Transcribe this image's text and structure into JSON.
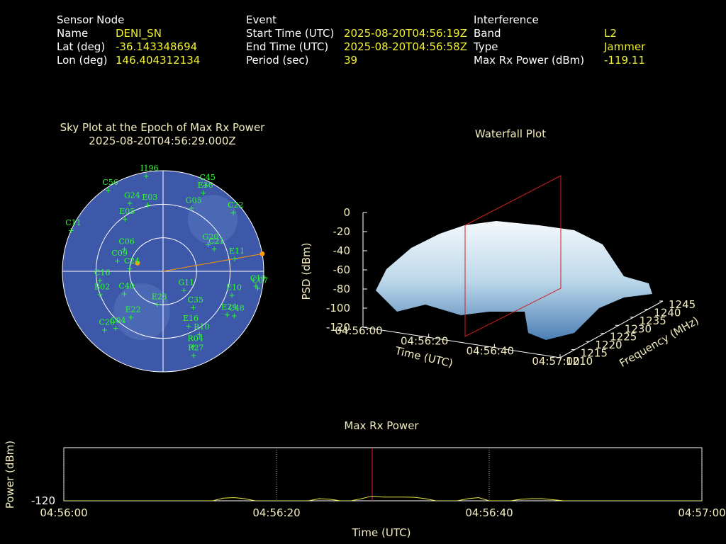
{
  "header": {
    "columns": [
      {
        "title": "Sensor Node",
        "rows": [
          [
            "Name",
            "DENI_SN"
          ],
          [
            "Lat (deg)",
            "-36.143348694"
          ],
          [
            "Lon (deg)",
            "146.404312134"
          ]
        ]
      },
      {
        "title": "Event",
        "rows": [
          [
            "Start Time (UTC)",
            "2025-08-20T04:56:19Z"
          ],
          [
            "End Time (UTC)",
            "2025-08-20T04:56:58Z"
          ],
          [
            "Period (sec)",
            "39"
          ]
        ]
      },
      {
        "title": "Interference",
        "rows": [
          [
            "Band",
            "L2"
          ],
          [
            "Type",
            "Jammer"
          ],
          [
            "Max Rx Power (dBm)",
            "-119.11"
          ]
        ]
      }
    ]
  },
  "chart_data": [
    {
      "type": "polar",
      "title": "Sky Plot at the Epoch of Max Rx Power",
      "subtitle": "2025-08-20T04:56:29.000Z",
      "rings": [
        30,
        60
      ],
      "satellites": {
        "names": [
          "C56",
          "I196",
          "C45",
          "E36",
          "G24",
          "E03",
          "G05",
          "C22",
          "E05",
          "C11",
          "G20",
          "C21",
          "E11",
          "C09",
          "C06",
          "C24",
          "C19",
          "C07",
          "E10",
          "G11",
          "C35",
          "E23",
          "E24",
          "C48",
          "E16",
          "R10",
          "R04",
          "R27",
          "C40",
          "E22",
          "C20",
          "C04",
          "B02",
          "C16"
        ],
        "azimuth": [
          326,
          350,
          26,
          27,
          334,
          347,
          24,
          50,
          324,
          294,
          59,
          66,
          80,
          283,
          300,
          275,
          99,
          100,
          109,
          132,
          140,
          190,
          124,
          122,
          155,
          150,
          158,
          160,
          240,
          215,
          225,
          220,
          250,
          262
        ],
        "elevation": [
          2,
          3,
          4,
          11,
          22,
          29,
          28,
          8,
          32,
          0,
          43,
          40,
          25,
          48,
          50,
          60,
          6,
          4,
          25,
          65,
          48,
          60,
          21,
          15,
          36,
          25,
          18,
          10,
          50,
          40,
          16,
          24,
          30,
          33
        ]
      },
      "interference": {
        "azimuth": 80,
        "elevation": 0,
        "color": "#ff9a00"
      },
      "sensor": {
        "azimuth": 288,
        "elevation": 66,
        "color": "#ff9a00"
      }
    },
    {
      "type": "surface",
      "title": "Waterfall Plot",
      "zlabel": "PSD (dBm)",
      "xlabel": "Time (UTC)",
      "ylabel": "Frequency (MHz)",
      "zlim": [
        -120,
        0
      ],
      "zticks": [
        0,
        -20,
        -40,
        -60,
        -80,
        -100,
        -120
      ],
      "xlim": [
        0,
        60
      ],
      "xticks": [
        {
          "value": 0,
          "label": "04:56:00"
        },
        {
          "value": 20,
          "label": "04:56:20"
        },
        {
          "value": 40,
          "label": "04:56:40"
        },
        {
          "value": 60,
          "label": "04:57:00"
        }
      ],
      "ylim": [
        1210,
        1245
      ],
      "yticks": [
        1210,
        1215,
        1220,
        1225,
        1230,
        1235,
        1240,
        1245
      ]
    },
    {
      "type": "line",
      "title": "Max Rx Power",
      "xlabel": "Time (UTC)",
      "ylabel": "Power (dBm)",
      "xlim": [
        0,
        60
      ],
      "xticks": [
        {
          "value": 0,
          "label": "04:56:00"
        },
        {
          "value": 20,
          "label": "04:56:20"
        },
        {
          "value": 40,
          "label": "04:56:40"
        },
        {
          "value": 60,
          "label": "04:57:00"
        }
      ],
      "ylim": [
        -120,
        -110
      ],
      "yticks": [
        -120
      ],
      "grid": true,
      "marker_x": 29,
      "marker_color": "#e02020",
      "x": [
        0,
        1,
        2,
        3,
        4,
        5,
        6,
        7,
        8,
        9,
        10,
        11,
        12,
        13,
        14,
        15,
        16,
        17,
        18,
        19,
        20,
        21,
        22,
        23,
        24,
        25,
        26,
        27,
        28,
        29,
        30,
        31,
        32,
        33,
        34,
        35,
        36,
        37,
        38,
        39,
        40,
        41,
        42,
        43,
        44,
        45,
        46,
        47,
        48,
        49,
        50,
        51,
        52,
        53,
        54,
        55,
        56,
        57,
        58,
        59,
        60
      ],
      "series": [
        {
          "name": "Max Rx Power",
          "color": "#e8e840",
          "values": [
            -120,
            -120,
            -120,
            -120,
            -120,
            -120,
            -120,
            -120,
            -120,
            -120,
            -120,
            -120,
            -120,
            -120,
            -120,
            -119.5,
            -119.4,
            -119.6,
            -120,
            -120,
            -120,
            -120,
            -120,
            -120,
            -119.6,
            -119.7,
            -120,
            -120,
            -119.6,
            -119.11,
            -119.3,
            -119.3,
            -119.3,
            -119.35,
            -119.6,
            -120,
            -120,
            -120,
            -119.6,
            -119.4,
            -120,
            -120,
            -120,
            -119.7,
            -119.6,
            -119.6,
            -119.8,
            -120,
            -120,
            -120,
            -120,
            -120,
            -120,
            -120,
            -120,
            -120,
            -120,
            -120,
            -120,
            -120,
            -120
          ]
        }
      ]
    }
  ]
}
